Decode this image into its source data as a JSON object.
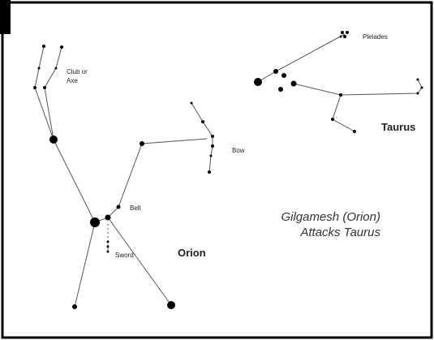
{
  "labels": {
    "club": [
      "Club or",
      "Axe"
    ],
    "bow": "Bow",
    "belt": "Belt",
    "sword": "Sword",
    "orion": "Orion",
    "pleiades": "Pleiades",
    "taurus": "Taurus"
  },
  "caption": [
    "Gilgamesh (Orion)",
    "Attacks Taurus"
  ]
}
